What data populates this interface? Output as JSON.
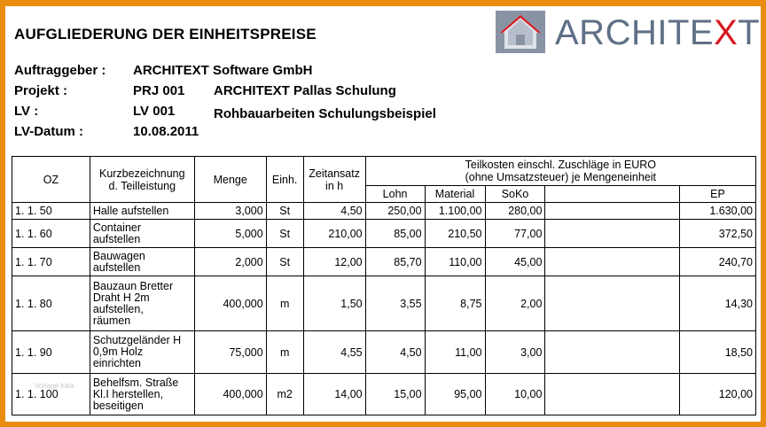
{
  "title": "AUFGLIEDERUNG DER EINHEITSPREISE",
  "logo": {
    "text_main": "ARCHITE",
    "text_x": "X",
    "text_t": "T"
  },
  "meta": {
    "auftraggeber_label": "Auftraggeber :",
    "auftraggeber_value": "ARCHITEXT Software GmbH",
    "projekt_label": "Projekt :",
    "projekt_code": "PRJ 001",
    "projekt_name": "ARCHITEXT Pallas Schulung",
    "lv_label": "LV :",
    "lv_code": "LV 001",
    "lv_name": "Rohbauarbeiten Schulungsbeispiel",
    "lvdatum_label": "LV-Datum :",
    "lvdatum_value": "10.08.2011"
  },
  "table": {
    "headers": {
      "oz": "OZ",
      "kurz_line1": "Kurzbezeichnung",
      "kurz_line2": "d. Teilleistung",
      "menge": "Menge",
      "einh": "Einh.",
      "zeit_line1": "Zeitansatz",
      "zeit_line2": "in h",
      "teilkosten_line1": "Teilkosten einschl. Zuschläge in EURO",
      "teilkosten_line2": "(ohne Umsatzsteuer) je Mengeneinheit",
      "lohn": "Lohn",
      "material": "Material",
      "soko": "SoKo",
      "blank": "",
      "ep": "EP"
    },
    "rows": [
      {
        "oz": "1. 1.  50",
        "desc": [
          "Halle aufstellen"
        ],
        "menge": "3,000",
        "einh": "St",
        "zeit": "4,50",
        "lohn": "250,00",
        "material": "1.100,00",
        "soko": "280,00",
        "ep": "1.630,00"
      },
      {
        "oz": "1. 1.  60",
        "desc": [
          "Container",
          "aufstellen"
        ],
        "menge": "5,000",
        "einh": "St",
        "zeit": "210,00",
        "lohn": "85,00",
        "material": "210,50",
        "soko": "77,00",
        "ep": "372,50"
      },
      {
        "oz": "1. 1.  70",
        "desc": [
          "Bauwagen",
          "aufstellen"
        ],
        "menge": "2,000",
        "einh": "St",
        "zeit": "12,00",
        "lohn": "85,70",
        "material": "110,00",
        "soko": "45,00",
        "ep": "240,70"
      },
      {
        "oz": "1. 1.  80",
        "desc": [
          "Bauzaun Bretter",
          "Draht H 2m",
          "aufstellen,",
          "räumen"
        ],
        "menge": "400,000",
        "einh": "m",
        "zeit": "1,50",
        "lohn": "3,55",
        "material": "8,75",
        "soko": "2,00",
        "ep": "14,30"
      },
      {
        "oz": "1. 1.  90",
        "desc": [
          "Schutzgeländer H",
          "0,9m Holz",
          "einrichten"
        ],
        "menge": "75,000",
        "einh": "m",
        "zeit": "4,55",
        "lohn": "4,50",
        "material": "11,00",
        "soko": "3,00",
        "ep": "18,50"
      },
      {
        "oz": "1. 1. 100",
        "desc": [
          "Behelfsm. Straße",
          "Kl.I herstellen,",
          "beseitigen"
        ],
        "menge": "400,000",
        "einh": "m2",
        "zeit": "14,00",
        "lohn": "15,00",
        "material": "95,00",
        "soko": "10,00",
        "ep": "120,00"
      }
    ]
  },
  "watermark": "Vorlage kata"
}
